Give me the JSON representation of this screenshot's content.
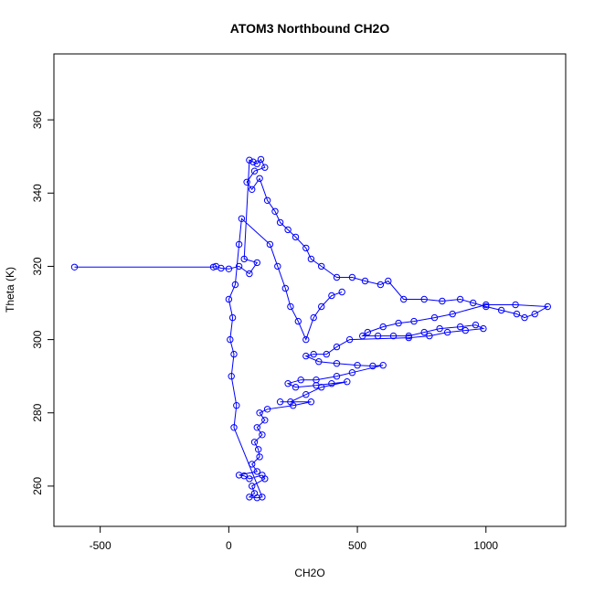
{
  "chart_data": {
    "type": "scatter",
    "title": "ATOM3 Northbound CH2O",
    "xlabel": "CH2O",
    "ylabel": "Theta (K)",
    "xlim": [
      -680,
      1310
    ],
    "ylim": [
      249,
      378
    ],
    "x_ticks": [
      -500,
      0,
      500,
      1000
    ],
    "y_ticks": [
      260,
      280,
      300,
      320,
      340,
      360
    ],
    "grid": false,
    "point_color": "#0000ff",
    "marker": "open-circle",
    "connected": true,
    "series": [
      {
        "points": [
          [
            -600,
            319.8
          ],
          [
            -60,
            319.8
          ],
          [
            -50,
            320
          ],
          [
            -30,
            319.5
          ],
          [
            0,
            319.3
          ],
          [
            40,
            320
          ],
          [
            80,
            318
          ],
          [
            110,
            321
          ],
          [
            60,
            322
          ],
          [
            80,
            349
          ],
          [
            95,
            348.5
          ],
          [
            110,
            348
          ],
          [
            125,
            349.2
          ],
          [
            140,
            347
          ],
          [
            100,
            346
          ],
          [
            70,
            343
          ],
          [
            90,
            341
          ],
          [
            120,
            344
          ],
          [
            150,
            338
          ],
          [
            180,
            335
          ],
          [
            200,
            332
          ],
          [
            230,
            330
          ],
          [
            260,
            328
          ],
          [
            300,
            325
          ],
          [
            320,
            322
          ],
          [
            360,
            320
          ],
          [
            420,
            317
          ],
          [
            480,
            317
          ],
          [
            530,
            316
          ],
          [
            590,
            315
          ],
          [
            620,
            316
          ],
          [
            680,
            311
          ],
          [
            760,
            311
          ],
          [
            830,
            310.5
          ],
          [
            900,
            311
          ],
          [
            950,
            310
          ],
          [
            1000,
            309
          ],
          [
            1060,
            308
          ],
          [
            1120,
            307
          ],
          [
            1150,
            306
          ],
          [
            1190,
            307
          ],
          [
            1240,
            309
          ],
          [
            1115,
            309.5
          ],
          [
            1000,
            309.5
          ],
          [
            870,
            307
          ],
          [
            800,
            306
          ],
          [
            720,
            305
          ],
          [
            660,
            304.5
          ],
          [
            600,
            303.5
          ],
          [
            540,
            302
          ],
          [
            520,
            301
          ],
          [
            580,
            301
          ],
          [
            640,
            301
          ],
          [
            700,
            301
          ],
          [
            760,
            302
          ],
          [
            820,
            303
          ],
          [
            900,
            303.5
          ],
          [
            960,
            304
          ],
          [
            990,
            303
          ],
          [
            920,
            302.5
          ],
          [
            850,
            302
          ],
          [
            780,
            301
          ],
          [
            700,
            300.5
          ],
          [
            470,
            300
          ],
          [
            420,
            298
          ],
          [
            380,
            296
          ],
          [
            330,
            296
          ],
          [
            300,
            295.5
          ],
          [
            350,
            294
          ],
          [
            420,
            293.5
          ],
          [
            500,
            293
          ],
          [
            560,
            292.8
          ],
          [
            600,
            293
          ],
          [
            480,
            291
          ],
          [
            420,
            290
          ],
          [
            340,
            289
          ],
          [
            280,
            289
          ],
          [
            230,
            288
          ],
          [
            260,
            287
          ],
          [
            340,
            287.5
          ],
          [
            400,
            288
          ],
          [
            460,
            288.5
          ],
          [
            360,
            287
          ],
          [
            300,
            285
          ],
          [
            240,
            283
          ],
          [
            200,
            283
          ],
          [
            320,
            283
          ],
          [
            250,
            282
          ],
          [
            150,
            281
          ],
          [
            120,
            280
          ],
          [
            140,
            278
          ],
          [
            110,
            276
          ],
          [
            130,
            274
          ],
          [
            100,
            272
          ],
          [
            115,
            270
          ],
          [
            120,
            268
          ],
          [
            90,
            266
          ],
          [
            110,
            264
          ],
          [
            40,
            263
          ],
          [
            60,
            262.8
          ],
          [
            80,
            262
          ],
          [
            130,
            263
          ],
          [
            140,
            262
          ],
          [
            90,
            260
          ],
          [
            100,
            258
          ],
          [
            80,
            257
          ],
          [
            110,
            256.8
          ],
          [
            130,
            257
          ],
          [
            20,
            276
          ],
          [
            30,
            282
          ],
          [
            10,
            290
          ],
          [
            20,
            296
          ],
          [
            5,
            300
          ],
          [
            15,
            306
          ],
          [
            0,
            311
          ],
          [
            25,
            315
          ],
          [
            40,
            326
          ],
          [
            50,
            333
          ],
          [
            160,
            326
          ],
          [
            190,
            320
          ],
          [
            220,
            314
          ],
          [
            240,
            309
          ],
          [
            270,
            305
          ],
          [
            300,
            300
          ],
          [
            330,
            306
          ],
          [
            360,
            309
          ],
          [
            400,
            312
          ],
          [
            440,
            313
          ]
        ]
      }
    ]
  }
}
